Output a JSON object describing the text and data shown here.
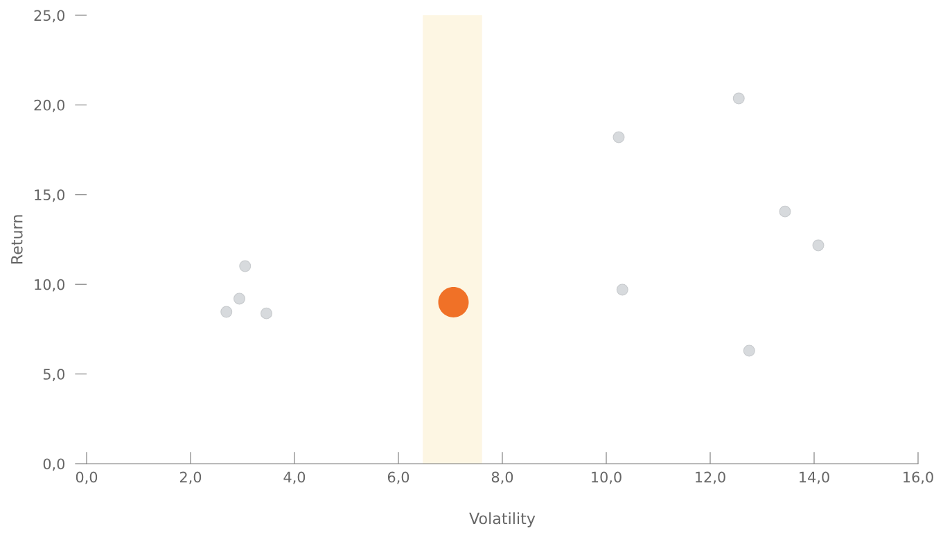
{
  "chart_data": {
    "type": "scatter",
    "xlabel": "Volatility",
    "ylabel": "Return",
    "series": [
      {
        "color": "#d7dadd",
        "x": [
          2.69,
          2.94,
          3.05,
          3.46,
          10.24,
          10.31,
          12.55,
          12.75,
          13.44,
          14.08
        ],
        "values": [
          8.46,
          9.2,
          11.01,
          8.38,
          18.2,
          9.7,
          20.36,
          6.3,
          14.06,
          12.17
        ]
      },
      {
        "color": "#f07127",
        "x": [
          7.06
        ],
        "values": [
          9.0
        ]
      }
    ],
    "bands": [
      {
        "axis": "x",
        "from": 6.47,
        "to": 7.61,
        "color": "#fdf6e3"
      }
    ],
    "xlim": [
      0,
      16
    ],
    "ylim": [
      0,
      25
    ],
    "xticks": [
      {
        "value": 0,
        "label": "0,0"
      },
      {
        "value": 2,
        "label": "2,0"
      },
      {
        "value": 4,
        "label": "4,0"
      },
      {
        "value": 6,
        "label": "6,0"
      },
      {
        "value": 8,
        "label": "8,0"
      },
      {
        "value": 10,
        "label": "10,0"
      },
      {
        "value": 12,
        "label": "12,0"
      },
      {
        "value": 14,
        "label": "14,0"
      },
      {
        "value": 16,
        "label": "16,0"
      }
    ],
    "yticks": [
      {
        "value": 0,
        "label": "0,0"
      },
      {
        "value": 5,
        "label": "5,0"
      },
      {
        "value": 10,
        "label": "10,0"
      },
      {
        "value": 15,
        "label": "15,0"
      },
      {
        "value": 20,
        "label": "20,0"
      },
      {
        "value": 25,
        "label": "25,0"
      }
    ],
    "grid": false,
    "legend": false
  }
}
